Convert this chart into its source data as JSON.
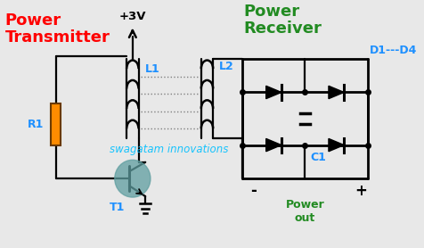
{
  "bg_color": "#e8e8e8",
  "title_text": "Power\nTransmitter",
  "title_color": "red",
  "receiver_text": "Power\nReceiver",
  "receiver_color": "#228B22",
  "watermark": "swagatam innovations",
  "watermark_color": "#00BFFF",
  "v3_label": "+3V",
  "L1_label": "L1",
  "L2_label": "L2",
  "R1_label": "R1",
  "T1_label": "T1",
  "C1_label": "C1",
  "D_label": "D1---D4",
  "power_out_label": "Power\nout",
  "power_out_color": "#228B22",
  "label_color": "#1E90FF",
  "resistor_color": "#FF8C00",
  "transistor_color": "#5F9EA0",
  "wire_color": "#000000"
}
